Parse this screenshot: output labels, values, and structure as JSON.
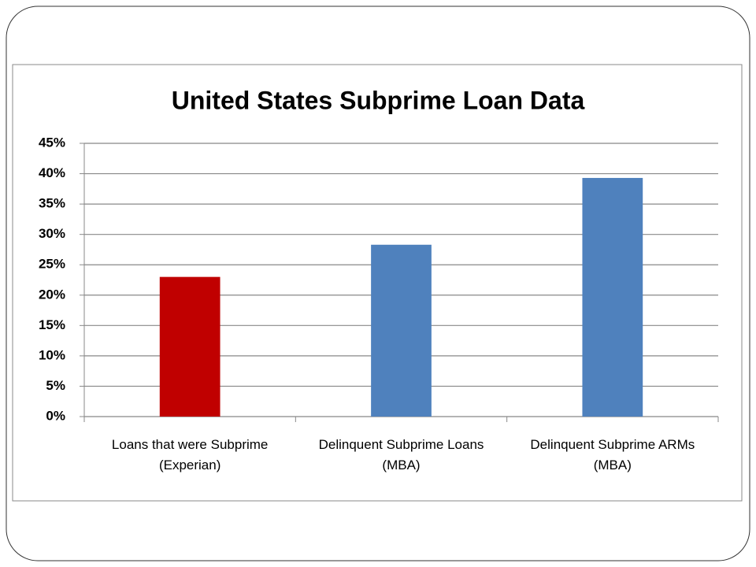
{
  "chart_data": {
    "type": "bar",
    "title": "United States Subprime Loan Data",
    "categories": [
      "Loans that were Subprime\n(Experian)",
      "Delinquent Subprime Loans\n(MBA)",
      "Delinquent Subprime ARMs\n(MBA)"
    ],
    "values": [
      23,
      28.3,
      39.3
    ],
    "colors": [
      "#c00000",
      "#4f81bd",
      "#4f81bd"
    ],
    "ylim": [
      0,
      45
    ],
    "yticks": [
      {
        "value": 0,
        "label": "0%"
      },
      {
        "value": 5,
        "label": "5%"
      },
      {
        "value": 10,
        "label": "10%"
      },
      {
        "value": 15,
        "label": "15%"
      },
      {
        "value": 20,
        "label": "20%"
      },
      {
        "value": 25,
        "label": "25%"
      },
      {
        "value": 30,
        "label": "30%"
      },
      {
        "value": 35,
        "label": "35%"
      },
      {
        "value": 40,
        "label": "40%"
      },
      {
        "value": 45,
        "label": "45%"
      }
    ],
    "grid": true
  }
}
